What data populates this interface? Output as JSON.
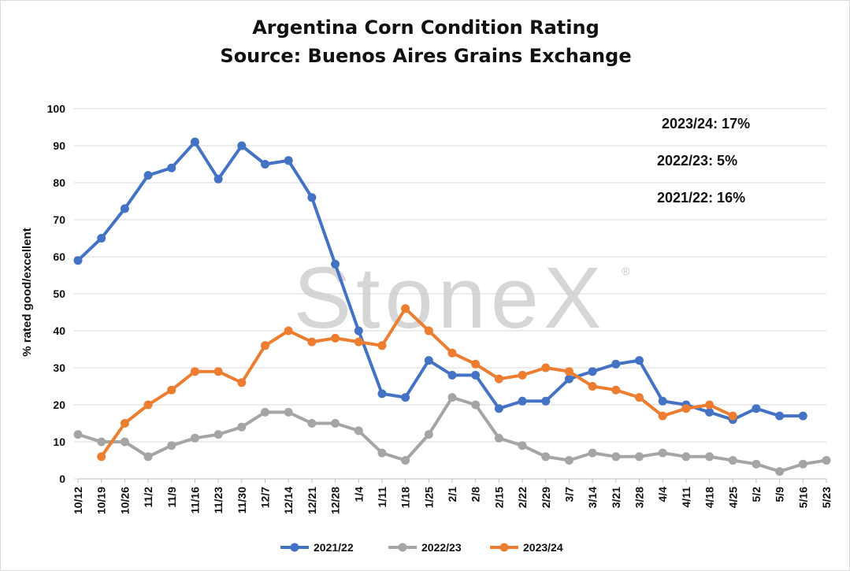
{
  "chart_data": {
    "type": "line",
    "title": "Argentina Corn Condition Rating",
    "subtitle": "Source: Buenos Aires Grains Exchange",
    "ylabel": "% rated good/excellent",
    "xlabel": "",
    "ylim": [
      0,
      100
    ],
    "yticks": [
      0,
      10,
      20,
      30,
      40,
      50,
      60,
      70,
      80,
      90,
      100
    ],
    "grid": true,
    "legend_position": "bottom",
    "watermark": "StoneX",
    "categories": [
      "10/12",
      "10/19",
      "10/26",
      "11/2",
      "11/9",
      "11/16",
      "11/23",
      "11/30",
      "12/7",
      "12/14",
      "12/21",
      "12/28",
      "1/4",
      "1/11",
      "1/18",
      "1/25",
      "2/1",
      "2/8",
      "2/15",
      "2/22",
      "2/29",
      "3/7",
      "3/14",
      "3/21",
      "3/28",
      "4/4",
      "4/11",
      "4/18",
      "4/25",
      "5/2",
      "5/9",
      "5/16",
      "5/23"
    ],
    "series": [
      {
        "name": "2021/22",
        "color": "#4472C4",
        "values": [
          59,
          65,
          73,
          82,
          84,
          91,
          81,
          90,
          85,
          86,
          76,
          58,
          40,
          23,
          22,
          32,
          28,
          28,
          19,
          21,
          21,
          27,
          29,
          31,
          32,
          21,
          20,
          18,
          16,
          19,
          17,
          17,
          null
        ]
      },
      {
        "name": "2022/23",
        "color": "#A5A5A5",
        "values": [
          12,
          10,
          10,
          6,
          9,
          11,
          12,
          14,
          18,
          18,
          15,
          15,
          13,
          7,
          5,
          12,
          22,
          20,
          11,
          9,
          6,
          5,
          7,
          6,
          6,
          7,
          6,
          6,
          5,
          4,
          2,
          4,
          5
        ]
      },
      {
        "name": "2023/24",
        "color": "#ED7D31",
        "values": [
          null,
          6,
          15,
          20,
          24,
          29,
          29,
          26,
          36,
          40,
          37,
          38,
          37,
          36,
          46,
          40,
          34,
          31,
          27,
          28,
          30,
          29,
          25,
          24,
          22,
          17,
          19,
          20,
          17,
          null,
          null,
          null,
          null
        ]
      }
    ],
    "annotations": [
      "2023/24: 17%",
      "2022/23: 5%",
      "2021/22: 16%"
    ]
  }
}
